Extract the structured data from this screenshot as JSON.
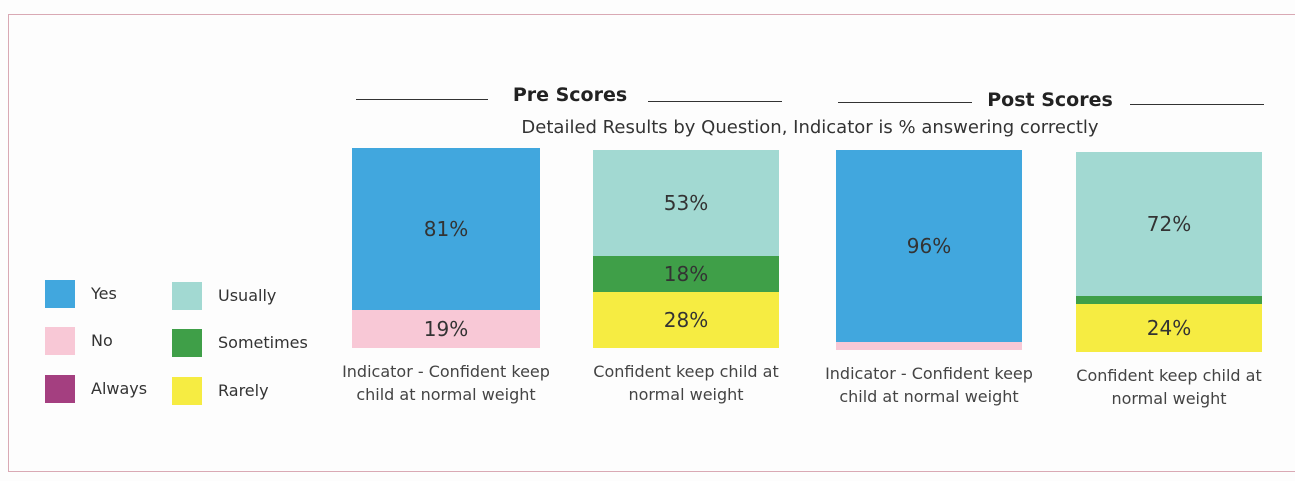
{
  "chart_data": {
    "type": "stacked-bar",
    "title": "Detailed Results by Question, Indicator is % answering correctly",
    "groups": [
      "Pre Scores",
      "Post Scores"
    ],
    "categories": [
      "Indicator - Confident keep child at normal weight",
      "Confident keep child at normal weight",
      "Indicator - Confident keep child at normal weight",
      "Confident keep child at normal weight"
    ],
    "series": [
      {
        "name": "Yes",
        "color": "#41a7de",
        "values": [
          81,
          null,
          96,
          null
        ],
        "value_labels": [
          "81%",
          null,
          "96%",
          null
        ]
      },
      {
        "name": "No",
        "color": "#f8c8d6",
        "values": [
          19,
          null,
          4,
          null
        ],
        "value_labels": [
          "19%",
          null,
          null,
          null
        ]
      },
      {
        "name": "Always",
        "color": "#a43f80",
        "values": [
          null,
          null,
          null,
          null
        ],
        "value_labels": [
          null,
          null,
          null,
          null
        ]
      },
      {
        "name": "Usually",
        "color": "#a2d9d2",
        "values": [
          null,
          53,
          null,
          72
        ],
        "value_labels": [
          null,
          "53%",
          null,
          "72%"
        ]
      },
      {
        "name": "Sometimes",
        "color": "#3f9f48",
        "values": [
          null,
          18,
          null,
          4
        ],
        "value_labels": [
          null,
          "18%",
          null,
          null
        ]
      },
      {
        "name": "Rarely",
        "color": "#f6ec42",
        "values": [
          null,
          28,
          null,
          24
        ],
        "value_labels": [
          null,
          "28%",
          null,
          "24%"
        ]
      }
    ]
  }
}
